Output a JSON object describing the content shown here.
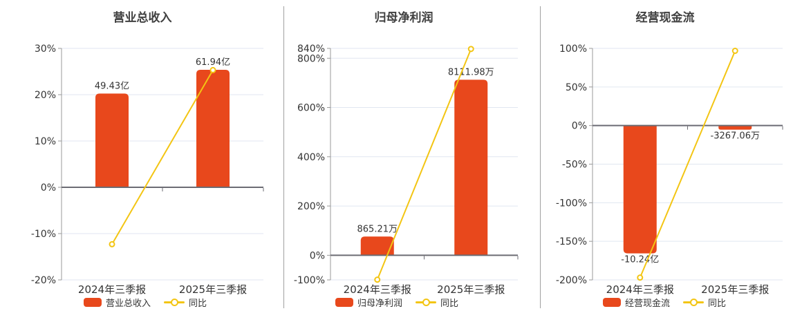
{
  "colors": {
    "bar": "#e8481c",
    "line": "#f3c513",
    "grid": "#e0e6f0",
    "zero_axis": "#6b6b73",
    "y_axis": "#999999",
    "text": "#333333",
    "divider": "#a0a0a0",
    "marker_fill": "#ffffff"
  },
  "chart_data": [
    {
      "type": "bar",
      "combo": "bar+line",
      "title": "营业总收入",
      "categories": [
        "2024年三季报",
        "2025年三季报"
      ],
      "bar_series": {
        "name": "营业总收入",
        "unit": "亿",
        "values": [
          49.43,
          61.94
        ],
        "labels": [
          "49.43亿",
          "61.94亿"
        ]
      },
      "line_series": {
        "name": "同比",
        "unit": "%",
        "values_pct": [
          -12.3,
          25.31
        ]
      },
      "y_axis": {
        "min": -20,
        "max": 30,
        "ticks": [
          30,
          20,
          10,
          0,
          -10,
          -20
        ],
        "tick_labels": [
          "30%",
          "20%",
          "10%",
          "0%",
          "-10%",
          "-20%"
        ]
      },
      "legend": [
        "营业总收入",
        "同比"
      ],
      "legend_position": "bottom",
      "grid": true
    },
    {
      "type": "bar",
      "combo": "bar+line",
      "title": "归母净利润",
      "categories": [
        "2024年三季报",
        "2025年三季报"
      ],
      "bar_series": {
        "name": "归母净利润",
        "unit": "万",
        "values": [
          865.21,
          8111.98
        ],
        "labels": [
          "865.21万",
          "8111.98万"
        ]
      },
      "line_series": {
        "name": "同比",
        "unit": "%",
        "values_pct": [
          -99.0,
          837.57
        ]
      },
      "y_axis": {
        "min": -100,
        "max": 840,
        "ticks": [
          840,
          800,
          600,
          400,
          200,
          0,
          -100
        ],
        "tick_labels": [
          "840%",
          "800%",
          "600%",
          "400%",
          "200%",
          "0%",
          "-100%"
        ]
      },
      "legend": [
        "归母净利润",
        "同比"
      ],
      "legend_position": "bottom",
      "grid": true
    },
    {
      "type": "bar",
      "combo": "bar+line",
      "title": "经营现金流",
      "categories": [
        "2024年三季报",
        "2025年三季报"
      ],
      "bar_series": {
        "name": "经营现金流",
        "unit": "亿",
        "values": [
          -10.24,
          -0.326706
        ],
        "labels": [
          "-10.24亿",
          "-3267.06万"
        ]
      },
      "line_series": {
        "name": "同比",
        "unit": "%",
        "values_pct": [
          -197.0,
          96.81
        ]
      },
      "y_axis": {
        "min": -200,
        "max": 100,
        "ticks": [
          100,
          50,
          0,
          -50,
          -100,
          -150,
          -200
        ],
        "tick_labels": [
          "100%",
          "50%",
          "0%",
          "-50%",
          "-100%",
          "-150%",
          "-200%"
        ]
      },
      "legend": [
        "经营现金流",
        "同比"
      ],
      "legend_position": "bottom",
      "grid": true
    }
  ]
}
